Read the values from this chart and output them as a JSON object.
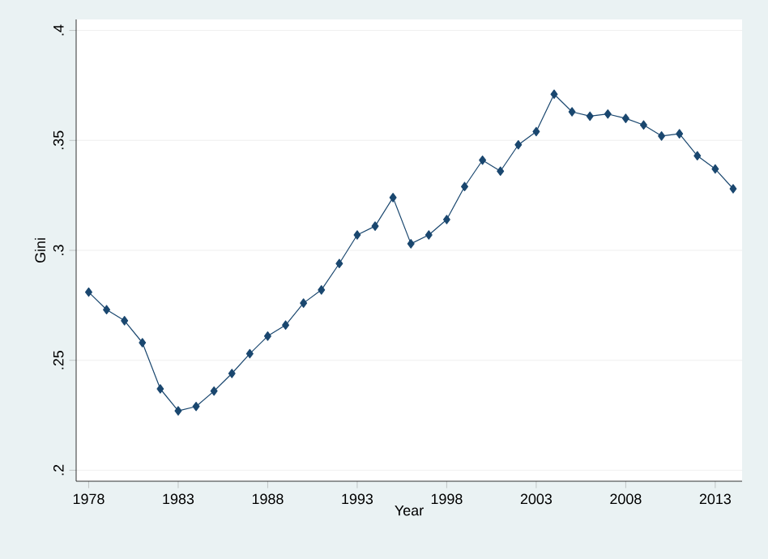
{
  "chart_data": {
    "type": "line",
    "xlabel": "Year",
    "ylabel": "Gini",
    "x": [
      1978,
      1979,
      1980,
      1981,
      1982,
      1983,
      1984,
      1985,
      1986,
      1987,
      1988,
      1989,
      1990,
      1991,
      1992,
      1993,
      1994,
      1995,
      1996,
      1997,
      1998,
      1999,
      2000,
      2001,
      2002,
      2003,
      2004,
      2005,
      2006,
      2007,
      2008,
      2009,
      2010,
      2011,
      2012,
      2013,
      2014
    ],
    "series": [
      {
        "color": "#1a476f",
        "values": [
          0.281,
          0.273,
          0.268,
          0.258,
          0.237,
          0.227,
          0.229,
          0.236,
          0.244,
          0.253,
          0.261,
          0.266,
          0.276,
          0.282,
          0.294,
          0.307,
          0.311,
          0.324,
          0.303,
          0.307,
          0.314,
          0.329,
          0.341,
          0.336,
          0.348,
          0.354,
          0.371,
          0.363,
          0.361,
          0.362,
          0.36,
          0.357,
          0.352,
          0.353,
          0.343,
          0.337,
          0.328
        ]
      }
    ],
    "xlim": [
      1977.3,
      2014.5
    ],
    "ylim": [
      0.195,
      0.405
    ],
    "xticks": [
      1978,
      1983,
      1988,
      1993,
      1998,
      2003,
      2008,
      2013
    ],
    "yticks": [
      {
        "value": 0.2,
        "label": ".2"
      },
      {
        "value": 0.25,
        "label": ".25"
      },
      {
        "value": 0.3,
        "label": ".3"
      },
      {
        "value": 0.35,
        "label": ".35"
      },
      {
        "value": 0.4,
        "label": ".4"
      }
    ],
    "grid": "y",
    "marker": "diamond",
    "line_style": "solid"
  }
}
